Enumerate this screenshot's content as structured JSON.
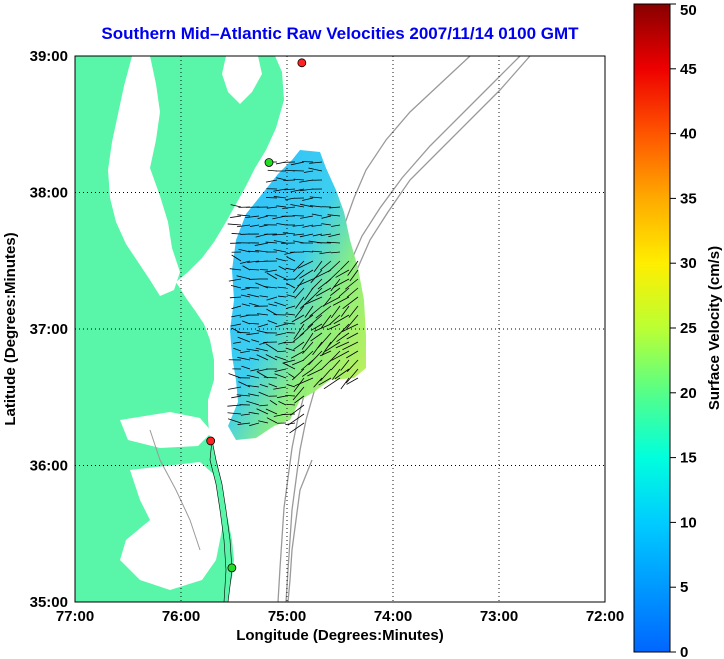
{
  "title": "Southern Mid–Atlantic Raw Velocities 2007/11/14 0100 GMT",
  "xlabel": "Longitude (Degrees:Minutes)",
  "ylabel": "Latitude (Degrees:Minutes)",
  "colorbar_label": "Surface Velocity (cm/s)",
  "lon_ticks": [
    "77:00",
    "76:00",
    "75:00",
    "74:00",
    "73:00",
    "72:00"
  ],
  "lat_ticks": [
    "39:00",
    "38:00",
    "37:00",
    "36:00",
    "35:00"
  ],
  "colorbar_ticks": [
    "0",
    "5",
    "10",
    "15",
    "20",
    "25",
    "30",
    "35",
    "40",
    "45",
    "50"
  ],
  "colors": {
    "land": "#59f5a8",
    "title": "#0000ee",
    "isobath": "#9a9a9a"
  },
  "chart_data": {
    "type": "map",
    "xlim_lon": [
      -77,
      -72
    ],
    "ylim_lat": [
      35,
      39
    ],
    "colorbar_range_cm_s": [
      0,
      50
    ],
    "grid": true,
    "radar_sites": [
      {
        "lon": -74.86,
        "lat": 38.95,
        "color": "red"
      },
      {
        "lon": -75.17,
        "lat": 38.22,
        "color": "green"
      },
      {
        "lon": -75.72,
        "lat": 36.18,
        "color": "red"
      },
      {
        "lon": -75.52,
        "lat": 35.25,
        "color": "green"
      }
    ]
  }
}
